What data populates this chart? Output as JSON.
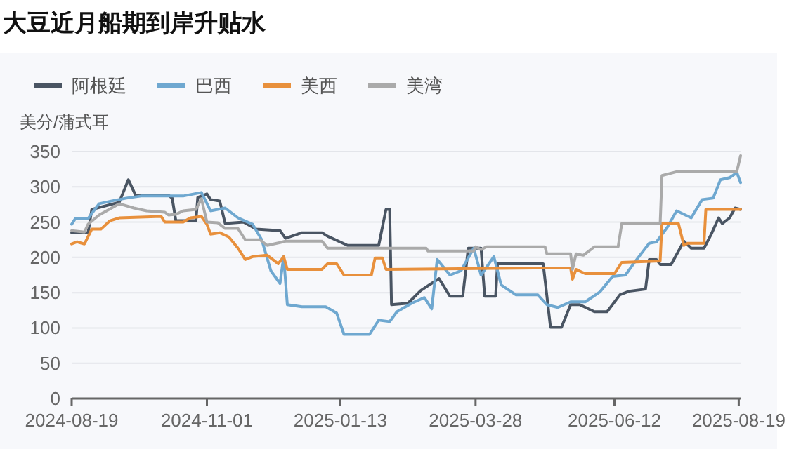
{
  "chart_data": {
    "type": "line",
    "title": "大豆近月船期到岸升贴水",
    "ylabel": "美分/蒲式耳",
    "xlim": [
      "2024-08-19",
      "2025-08-20"
    ],
    "xticks": [
      "2024-08-19",
      "2024-11-01",
      "2025-01-13",
      "2025-03-28",
      "2025-06-12",
      "2025-08-19"
    ],
    "ylim": [
      0,
      350
    ],
    "yticks": [
      0,
      50,
      100,
      150,
      200,
      250,
      300,
      350
    ],
    "grid": "y",
    "legend": "top",
    "series": [
      {
        "name": "阿根廷",
        "color": "#4a5563",
        "x": [
          "2024-08-19",
          "2024-08-28",
          "2024-08-30",
          "2024-09-14",
          "2024-09-19",
          "2024-09-23",
          "2024-10-11",
          "2024-10-13",
          "2024-10-15",
          "2024-10-26",
          "2024-10-27",
          "2024-11-01",
          "2024-11-03",
          "2024-11-08",
          "2024-11-11",
          "2024-11-21",
          "2024-11-28",
          "2024-12-11",
          "2024-12-14",
          "2024-12-23",
          "2025-01-03",
          "2025-01-06",
          "2025-01-17",
          "2025-02-03",
          "2025-02-07",
          "2025-02-09",
          "2025-02-10",
          "2025-02-19",
          "2025-02-26",
          "2025-03-08",
          "2025-03-14",
          "2025-03-21",
          "2025-03-24",
          "2025-03-31",
          "2025-04-02",
          "2025-04-08",
          "2025-04-09",
          "2025-05-04",
          "2025-05-08",
          "2025-05-14",
          "2025-05-19",
          "2025-05-24",
          "2025-06-01",
          "2025-06-08",
          "2025-06-15",
          "2025-06-20",
          "2025-06-29",
          "2025-07-01",
          "2025-07-05",
          "2025-07-07",
          "2025-07-13",
          "2025-07-20",
          "2025-07-24",
          "2025-07-31",
          "2025-08-04",
          "2025-08-08",
          "2025-08-10",
          "2025-08-14",
          "2025-08-17",
          "2025-08-20"
        ],
        "values": [
          235,
          235,
          268,
          278,
          310,
          288,
          288,
          284,
          252,
          252,
          285,
          290,
          282,
          280,
          248,
          250,
          240,
          238,
          227,
          235,
          235,
          230,
          217,
          217,
          268,
          268,
          133,
          135,
          153,
          170,
          145,
          145,
          213,
          213,
          145,
          145,
          191,
          191,
          101,
          101,
          133,
          133,
          123,
          123,
          147,
          152,
          155,
          197,
          197,
          190,
          190,
          223,
          213,
          213,
          233,
          256,
          248,
          256,
          270,
          268
        ]
      },
      {
        "name": "巴西",
        "color": "#6fa8d0",
        "x": [
          "2024-08-19",
          "2024-08-21",
          "2024-08-28",
          "2024-09-03",
          "2024-09-10",
          "2024-09-18",
          "2024-09-26",
          "2024-10-19",
          "2024-10-29",
          "2024-11-03",
          "2024-11-11",
          "2024-11-18",
          "2024-11-26",
          "2024-12-01",
          "2024-12-06",
          "2024-12-11",
          "2024-12-13",
          "2024-12-15",
          "2024-12-23",
          "2025-01-05",
          "2025-01-11",
          "2025-01-15",
          "2025-01-29",
          "2025-02-03",
          "2025-02-09",
          "2025-02-13",
          "2025-02-21",
          "2025-02-28",
          "2025-03-04",
          "2025-03-07",
          "2025-03-14",
          "2025-03-20",
          "2025-03-27",
          "2025-03-31",
          "2025-04-07",
          "2025-04-11",
          "2025-04-19",
          "2025-05-01",
          "2025-05-06",
          "2025-05-12",
          "2025-05-19",
          "2025-05-27",
          "2025-06-04",
          "2025-06-11",
          "2025-06-18",
          "2025-06-23",
          "2025-07-01",
          "2025-07-05",
          "2025-07-11",
          "2025-07-16",
          "2025-07-24",
          "2025-07-30",
          "2025-08-05",
          "2025-08-09",
          "2025-08-14",
          "2025-08-18",
          "2025-08-20"
        ],
        "values": [
          247,
          255,
          255,
          276,
          280,
          284,
          287,
          287,
          292,
          266,
          270,
          256,
          247,
          225,
          181,
          163,
          201,
          133,
          130,
          130,
          121,
          91,
          91,
          111,
          109,
          123,
          135,
          143,
          127,
          197,
          175,
          181,
          213,
          175,
          201,
          161,
          147,
          147,
          133,
          129,
          137,
          137,
          151,
          173,
          175,
          193,
          220,
          222,
          243,
          266,
          256,
          282,
          284,
          310,
          313,
          320,
          306
        ]
      },
      {
        "name": "美西",
        "color": "#e8903c",
        "x": [
          "2024-08-19",
          "2024-08-22",
          "2024-08-26",
          "2024-08-30",
          "2024-09-04",
          "2024-09-09",
          "2024-09-14",
          "2024-10-07",
          "2024-10-09",
          "2024-10-19",
          "2024-10-23",
          "2024-10-29",
          "2024-11-01",
          "2024-11-03",
          "2024-11-08",
          "2024-11-13",
          "2024-11-18",
          "2024-11-22",
          "2024-11-26",
          "2024-12-04",
          "2024-12-10",
          "2024-12-13",
          "2024-12-15",
          "2025-01-03",
          "2025-01-06",
          "2025-01-11",
          "2025-01-15",
          "2025-01-30",
          "2025-02-01",
          "2025-02-05",
          "2025-02-07",
          "2025-04-29",
          "2025-05-19",
          "2025-05-20",
          "2025-05-22",
          "2025-05-27",
          "2025-06-12",
          "2025-06-16",
          "2025-07-07",
          "2025-07-08",
          "2025-07-17",
          "2025-07-20",
          "2025-07-22",
          "2025-07-31",
          "2025-08-01",
          "2025-08-20"
        ],
        "values": [
          219,
          222,
          219,
          240,
          240,
          252,
          256,
          258,
          250,
          250,
          256,
          258,
          247,
          233,
          235,
          229,
          213,
          197,
          201,
          203,
          191,
          201,
          183,
          183,
          191,
          191,
          175,
          175,
          199,
          199,
          183,
          185,
          185,
          169,
          183,
          177,
          177,
          193,
          195,
          248,
          248,
          217,
          220,
          220,
          268,
          268
        ]
      },
      {
        "name": "美湾",
        "color": "#aaaaaa",
        "x": [
          "2024-08-19",
          "2024-08-26",
          "2024-08-28",
          "2024-09-03",
          "2024-09-14",
          "2024-09-22",
          "2024-09-29",
          "2024-10-09",
          "2024-10-11",
          "2024-10-15",
          "2024-10-19",
          "2024-10-26",
          "2024-10-29",
          "2024-11-01",
          "2024-11-07",
          "2024-11-11",
          "2024-11-18",
          "2024-11-22",
          "2024-11-30",
          "2024-12-04",
          "2024-12-11",
          "2024-12-14",
          "2025-01-03",
          "2025-01-06",
          "2025-03-01",
          "2025-03-02",
          "2025-03-27",
          "2025-03-28",
          "2025-03-31",
          "2025-04-03",
          "2025-05-05",
          "2025-05-06",
          "2025-05-19",
          "2025-05-20",
          "2025-05-22",
          "2025-05-26",
          "2025-06-01",
          "2025-06-14",
          "2025-06-16",
          "2025-07-07",
          "2025-07-08",
          "2025-07-17",
          "2025-08-18",
          "2025-08-20"
        ],
        "values": [
          238,
          236,
          247,
          260,
          276,
          270,
          266,
          264,
          260,
          261,
          266,
          268,
          283,
          250,
          249,
          241,
          241,
          225,
          225,
          217,
          221,
          223,
          223,
          213,
          213,
          209,
          209,
          215,
          211,
          215,
          215,
          205,
          205,
          183,
          205,
          203,
          215,
          215,
          248,
          248,
          316,
          322,
          322,
          344
        ]
      }
    ]
  }
}
